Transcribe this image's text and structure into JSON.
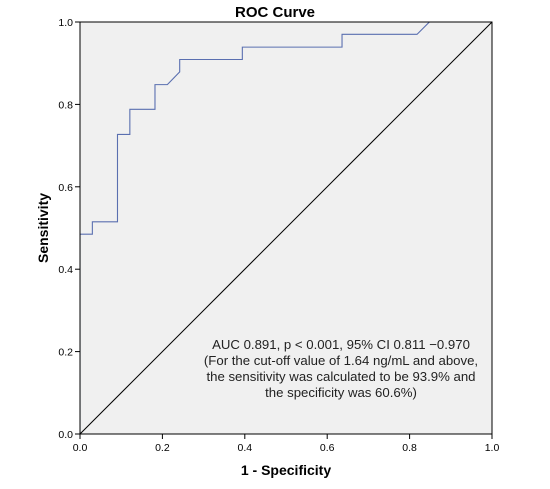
{
  "chart_data": {
    "type": "line",
    "title": "ROC Curve",
    "xlabel": "1 - Specificity",
    "ylabel": "Sensitivity",
    "xlim": [
      0.0,
      1.0
    ],
    "ylim": [
      0.0,
      1.0
    ],
    "xticks": [
      "0.0",
      "0.2",
      "0.4",
      "0.6",
      "0.8",
      "1.0"
    ],
    "yticks": [
      "0.0",
      "0.2",
      "0.4",
      "0.6",
      "0.8",
      "1.0"
    ],
    "grid": false,
    "series": [
      {
        "style": "step",
        "color": "#5a6fb0",
        "x": [
          0.0,
          0.0,
          0.03,
          0.03,
          0.091,
          0.091,
          0.121,
          0.121,
          0.182,
          0.182,
          0.212,
          0.242,
          0.242,
          0.394,
          0.394,
          0.636,
          0.636,
          0.818,
          0.848,
          1.0
        ],
        "y": [
          0.0,
          0.485,
          0.485,
          0.515,
          0.515,
          0.727,
          0.727,
          0.788,
          0.788,
          0.848,
          0.848,
          0.879,
          0.909,
          0.909,
          0.939,
          0.939,
          0.97,
          0.97,
          1.0,
          1.0
        ]
      },
      {
        "style": "reference",
        "color": "#000000",
        "x": [
          0.0,
          1.0
        ],
        "y": [
          0.0,
          1.0
        ]
      }
    ],
    "annotation": "AUC 0.891, p < 0.001, 95% CI 0.811 −0.970 (For the cut-off value of 1.64 ng/mL and above, the sensitivity was calculated to be 93.9% and the specificity was 60.6%)",
    "background": "#f0f0f0"
  }
}
